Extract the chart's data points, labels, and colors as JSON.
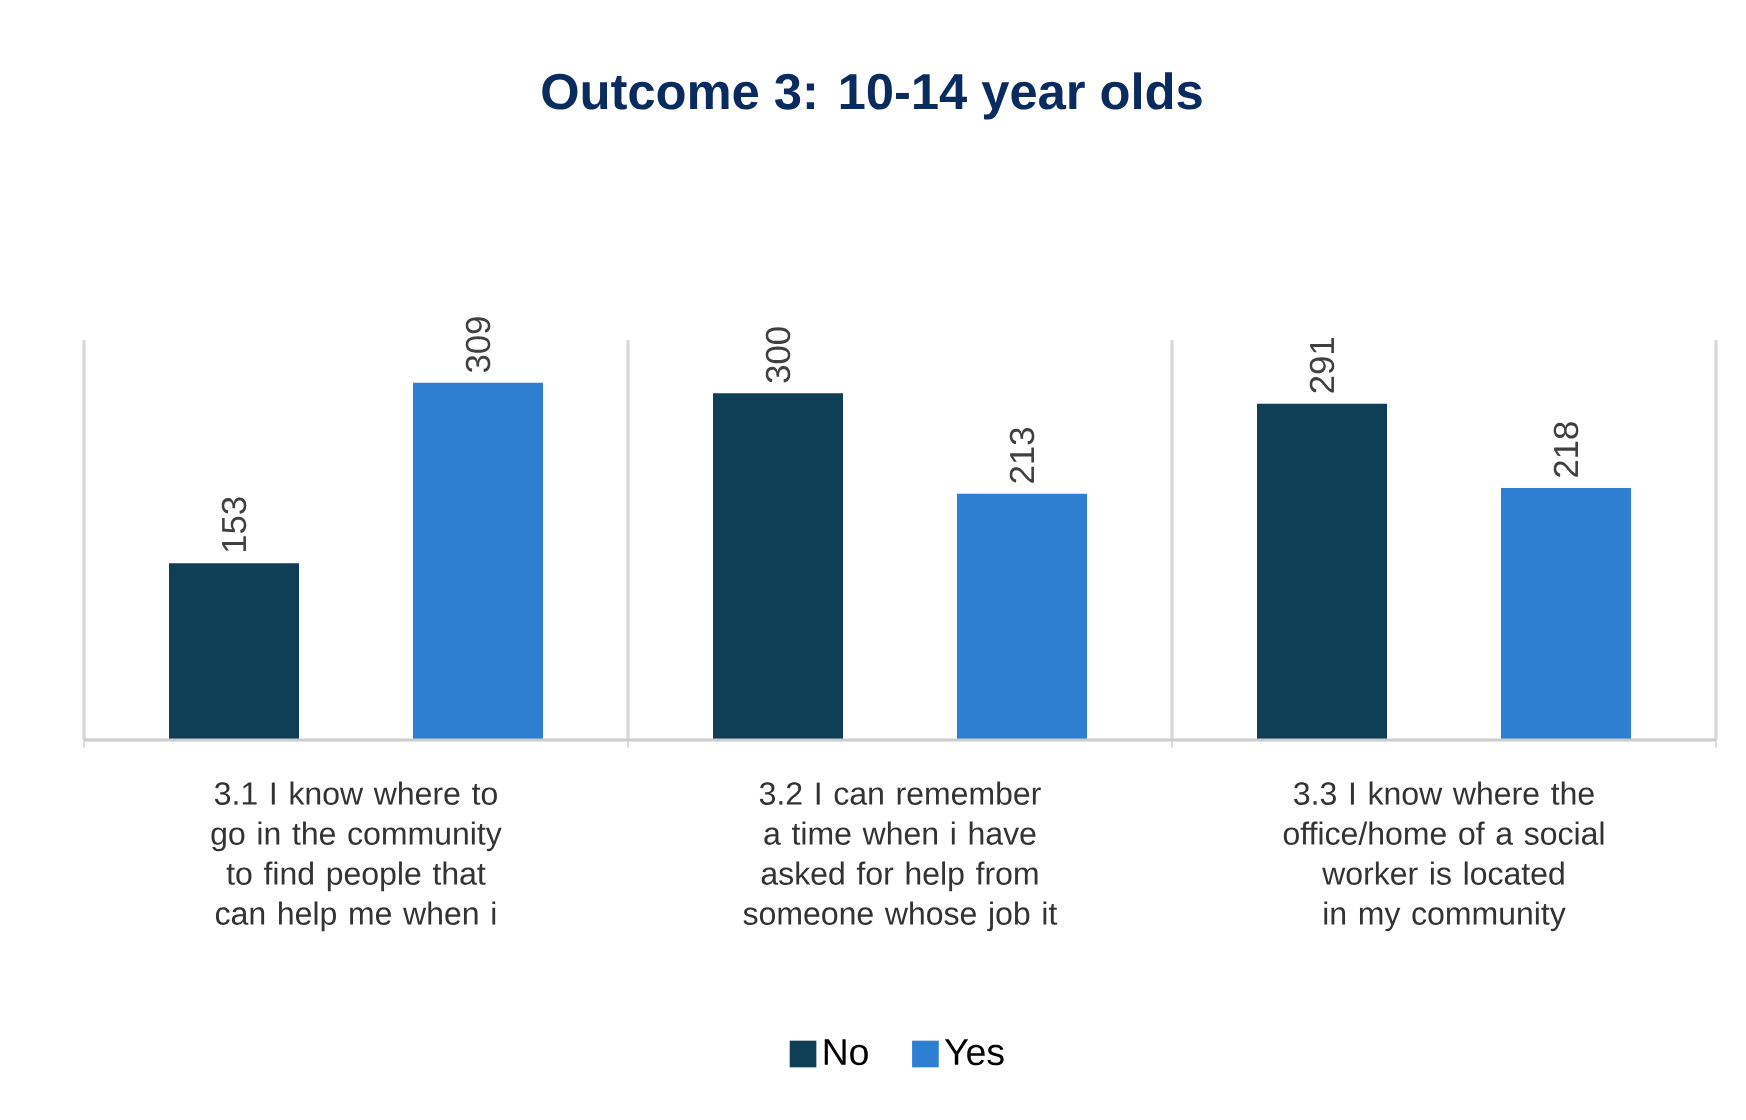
{
  "chart_data": {
    "type": "bar",
    "title": "Outcome 3: 10-14 year olds",
    "categories": [
      "3.1 I know where to go in the community to find people that can help me when i",
      "3.2 I can remember a time when i have asked for help from someone whose job it",
      "3.3 I know where the office/home of a social worker is located in my community"
    ],
    "series": [
      {
        "name": "No",
        "color": "#0f3f57",
        "values": [
          153,
          300,
          291
        ]
      },
      {
        "name": "Yes",
        "color": "#2e7fd2",
        "values": [
          309,
          213,
          218
        ]
      }
    ],
    "data_labels": true,
    "legend": "bottom"
  }
}
